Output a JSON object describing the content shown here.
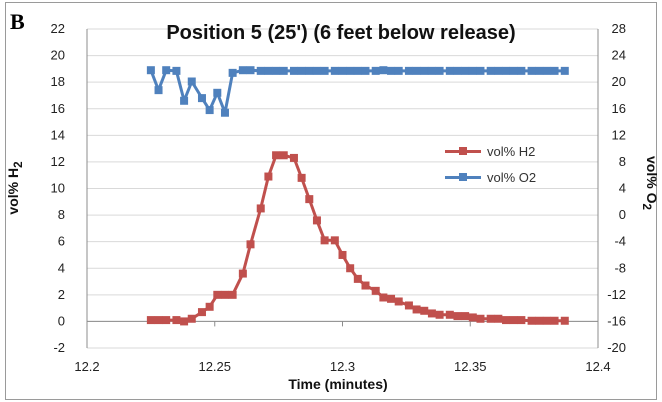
{
  "panel_label": "B",
  "chart_data": {
    "type": "line",
    "title": "Position 5 (25') (6 feet below release)",
    "xlabel": "Time (minutes)",
    "ylabel": "vol% H",
    "ylabel_subscript": "2",
    "y2label": "vol% O",
    "y2label_subscript": "2",
    "xlim": [
      12.2,
      12.4
    ],
    "ylim": [
      -2,
      22
    ],
    "y2lim": [
      -20,
      28
    ],
    "x_ticks": [
      "12.2",
      "12.25",
      "12.3",
      "12.35",
      "12.4"
    ],
    "y_ticks": [
      "-2",
      "0",
      "2",
      "4",
      "6",
      "8",
      "10",
      "12",
      "14",
      "16",
      "18",
      "20",
      "22"
    ],
    "y2_ticks": [
      "-20",
      "-16",
      "-12",
      "-8",
      "-4",
      "0",
      "4",
      "8",
      "12",
      "16",
      "20",
      "24",
      "28"
    ],
    "grid": "horizontal",
    "legend_position": "right",
    "series": [
      {
        "name": "vol% H2",
        "axis": "left",
        "color": "#c0504d",
        "marker": "square",
        "x": [
          12.225,
          12.228,
          12.231,
          12.235,
          12.238,
          12.241,
          12.245,
          12.248,
          12.251,
          12.254,
          12.257,
          12.261,
          12.264,
          12.268,
          12.271,
          12.274,
          12.277,
          12.281,
          12.284,
          12.287,
          12.29,
          12.293,
          12.297,
          12.3,
          12.303,
          12.306,
          12.309,
          12.313,
          12.316,
          12.319,
          12.322,
          12.326,
          12.329,
          12.332,
          12.335,
          12.338,
          12.342,
          12.345,
          12.348,
          12.351,
          12.354,
          12.358,
          12.361,
          12.364,
          12.367,
          12.37,
          12.374,
          12.377,
          12.38,
          12.383,
          12.387
        ],
        "values": [
          0.1,
          0.1,
          0.1,
          0.1,
          0.0,
          0.2,
          0.7,
          1.1,
          2.0,
          2.0,
          2.0,
          3.6,
          5.8,
          8.5,
          10.9,
          12.5,
          12.5,
          12.3,
          10.8,
          9.2,
          7.6,
          6.1,
          6.1,
          5.0,
          4.0,
          3.2,
          2.7,
          2.3,
          1.8,
          1.7,
          1.5,
          1.2,
          0.9,
          0.8,
          0.6,
          0.5,
          0.5,
          0.4,
          0.4,
          0.3,
          0.2,
          0.2,
          0.2,
          0.1,
          0.1,
          0.1,
          0.05,
          0.05,
          0.05,
          0.05,
          0.05
        ]
      },
      {
        "name": "vol% O2",
        "axis": "right",
        "color": "#4f81bd",
        "marker": "square",
        "x": [
          12.225,
          12.228,
          12.231,
          12.235,
          12.238,
          12.241,
          12.245,
          12.248,
          12.251,
          12.254,
          12.257,
          12.261,
          12.264,
          12.268,
          12.271,
          12.274,
          12.277,
          12.281,
          12.284,
          12.287,
          12.29,
          12.293,
          12.297,
          12.3,
          12.303,
          12.306,
          12.309,
          12.313,
          12.316,
          12.319,
          12.322,
          12.326,
          12.329,
          12.332,
          12.335,
          12.338,
          12.342,
          12.345,
          12.348,
          12.351,
          12.354,
          12.358,
          12.361,
          12.364,
          12.367,
          12.37,
          12.374,
          12.377,
          12.38,
          12.383,
          12.387
        ],
        "values": [
          21.8,
          18.8,
          21.8,
          21.7,
          17.2,
          20.1,
          17.6,
          15.8,
          18.4,
          15.4,
          21.4,
          21.8,
          21.8,
          21.7,
          21.7,
          21.7,
          21.7,
          21.7,
          21.7,
          21.7,
          21.7,
          21.7,
          21.7,
          21.7,
          21.7,
          21.7,
          21.7,
          21.7,
          21.8,
          21.7,
          21.7,
          21.7,
          21.7,
          21.7,
          21.7,
          21.7,
          21.7,
          21.7,
          21.7,
          21.7,
          21.7,
          21.7,
          21.7,
          21.7,
          21.7,
          21.7,
          21.7,
          21.7,
          21.7,
          21.7,
          21.7
        ]
      }
    ]
  }
}
